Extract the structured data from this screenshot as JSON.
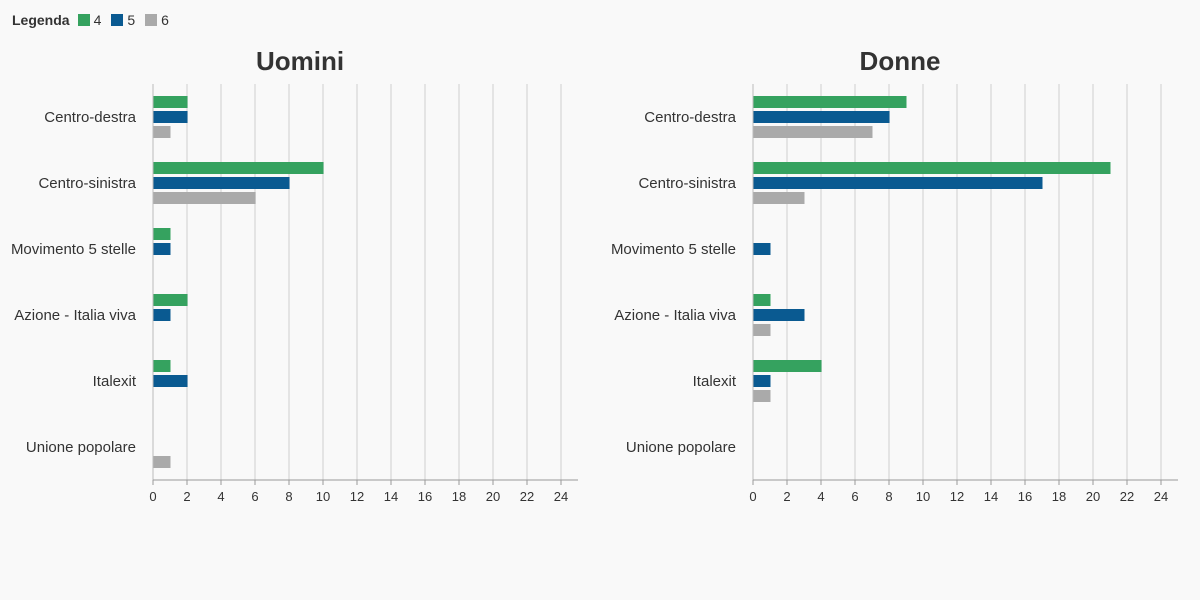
{
  "legend": {
    "title": "Legenda",
    "items": [
      {
        "label": "4",
        "color": "#35a25f"
      },
      {
        "label": "5",
        "color": "#0a5a91"
      },
      {
        "label": "6",
        "color": "#aaaaaa"
      }
    ]
  },
  "chart_data": [
    {
      "type": "bar",
      "orientation": "horizontal",
      "title": "Uomini",
      "categories": [
        "Centro-destra",
        "Centro-sinistra",
        "Movimento 5 stelle",
        "Azione - Italia viva",
        "Italexit",
        "Unione popolare"
      ],
      "series": [
        {
          "name": "4",
          "values": [
            2,
            10,
            1,
            2,
            1,
            0
          ]
        },
        {
          "name": "5",
          "values": [
            2,
            8,
            1,
            1,
            2,
            0
          ]
        },
        {
          "name": "6",
          "values": [
            1,
            6,
            0,
            0,
            0,
            1
          ]
        }
      ],
      "xlim": [
        0,
        25
      ],
      "xticks": [
        0,
        2,
        4,
        6,
        8,
        10,
        12,
        14,
        16,
        18,
        20,
        22,
        24
      ],
      "grid": true
    },
    {
      "type": "bar",
      "orientation": "horizontal",
      "title": "Donne",
      "categories": [
        "Centro-destra",
        "Centro-sinistra",
        "Movimento 5 stelle",
        "Azione - Italia viva",
        "Italexit",
        "Unione popolare"
      ],
      "series": [
        {
          "name": "4",
          "values": [
            9,
            21,
            0,
            1,
            4,
            0
          ]
        },
        {
          "name": "5",
          "values": [
            8,
            17,
            1,
            3,
            1,
            0
          ]
        },
        {
          "name": "6",
          "values": [
            7,
            3,
            0,
            1,
            1,
            0
          ]
        }
      ],
      "xlim": [
        0,
        25
      ],
      "xticks": [
        0,
        2,
        4,
        6,
        8,
        10,
        12,
        14,
        16,
        18,
        20,
        22,
        24
      ],
      "grid": true
    }
  ]
}
